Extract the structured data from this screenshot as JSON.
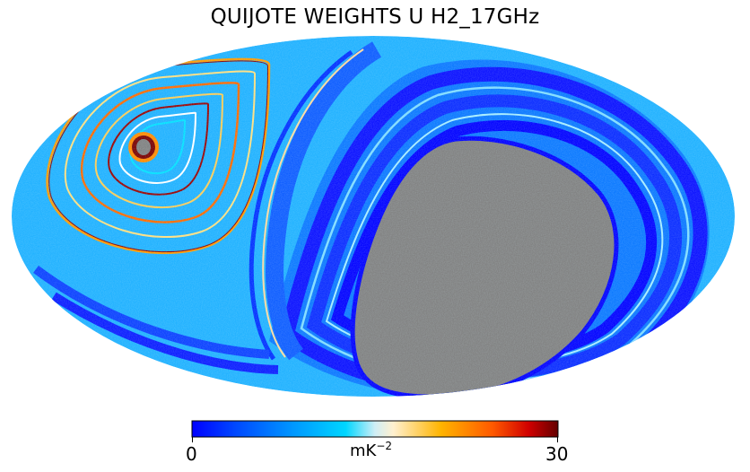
{
  "figure": {
    "title": "QUIJOTE WEIGHTS U H2_17GHz"
  },
  "colorbar": {
    "min_label": "0",
    "max_label": "30",
    "unit_base": "mK",
    "unit_exponent": "−2",
    "min_value": 0,
    "max_value": 30,
    "colormap": [
      "#0000ff",
      "#0049ff",
      "#0099ff",
      "#00d6ff",
      "#cfeef6",
      "#fff0cf",
      "#ffb400",
      "#ff5a00",
      "#d00000",
      "#640000"
    ]
  },
  "map": {
    "projection": "mollweide",
    "masked_color": "#808080",
    "background_color": "#1fb1ff"
  }
}
